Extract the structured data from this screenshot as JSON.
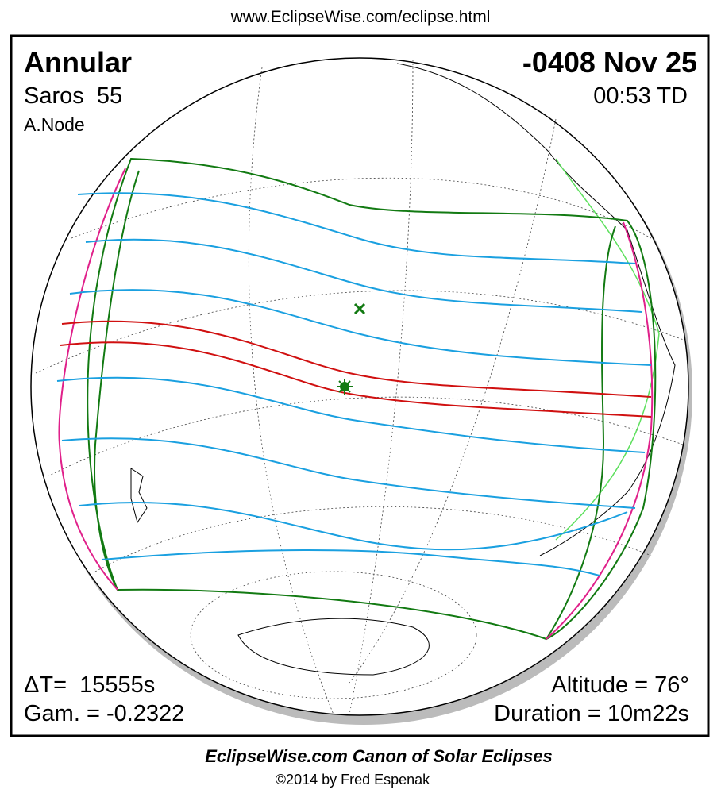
{
  "header": {
    "url": "www.EclipseWise.com/eclipse.html"
  },
  "eclipse": {
    "type": "Annular",
    "date": "-0408 Nov 25",
    "saros": "Saros  55",
    "time": "00:53 TD",
    "node": "A.Node",
    "delta_t": "ΔT=  15555s",
    "gamma": "Gam. = -0.2322",
    "altitude": "Altitude = 76°",
    "duration": "Duration = 10m22s"
  },
  "footer": {
    "title": "EclipseWise.com Canon of Solar Eclipses",
    "copyright": "©2014 by Fred Espenak"
  }
}
